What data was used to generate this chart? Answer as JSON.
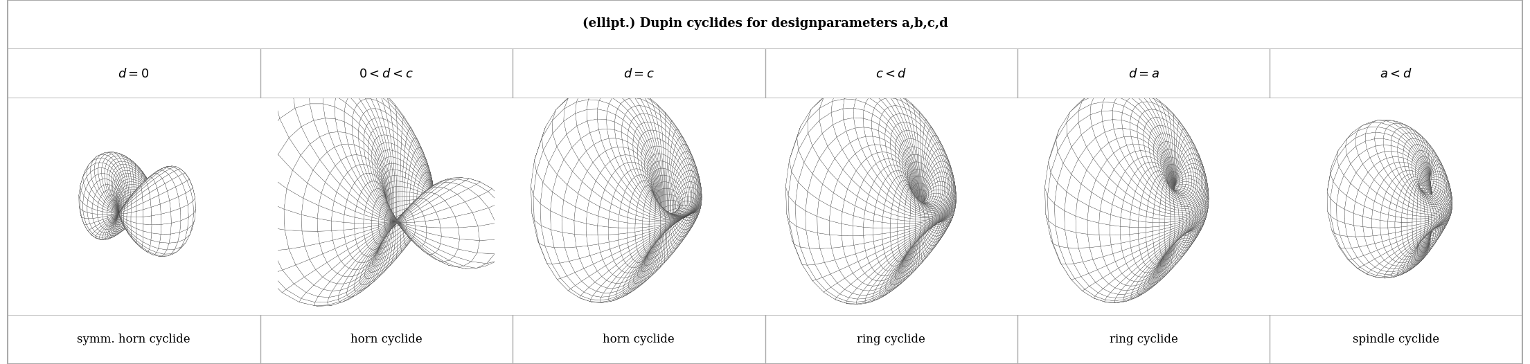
{
  "title": "(ellipt.) Dupin cyclides for designparameters a,b,c,d",
  "conditions": [
    "$d = 0$",
    "$0 < d < c$",
    "$d = c$",
    "$c < d$",
    "$d = a$",
    "$a < d$"
  ],
  "labels": [
    "symm. horn cyclide",
    "horn cyclide",
    "horn cyclide",
    "ring cyclide",
    "ring cyclide",
    "spindle cyclide"
  ],
  "label_colors": [
    "#000000",
    "#000000",
    "#000000",
    "#000000",
    "#000000",
    "#000000"
  ],
  "n_cols": 6,
  "title_fontsize": 13,
  "condition_fontsize": 13,
  "label_fontsize": 12,
  "bg_color": "#ffffff",
  "border_color": "#aaaaaa",
  "cyclide_params": [
    {
      "a": 2.0,
      "b": 1.8,
      "c": 1.8,
      "d": 0.0,
      "elev": 20,
      "azim": -60
    },
    {
      "a": 2.0,
      "b": 1.5,
      "c": 1.8,
      "d": 0.9,
      "elev": 20,
      "azim": -60
    },
    {
      "a": 2.0,
      "b": 1.2,
      "c": 1.8,
      "d": 1.8,
      "elev": 20,
      "azim": -60
    },
    {
      "a": 2.0,
      "b": 1.0,
      "c": 1.5,
      "d": 1.7,
      "elev": 20,
      "azim": -60
    },
    {
      "a": 2.0,
      "b": 1.0,
      "c": 1.5,
      "d": 2.0,
      "elev": 20,
      "azim": -60
    },
    {
      "a": 2.0,
      "b": 0.8,
      "c": 1.5,
      "d": 2.5,
      "elev": 20,
      "azim": -60
    }
  ]
}
